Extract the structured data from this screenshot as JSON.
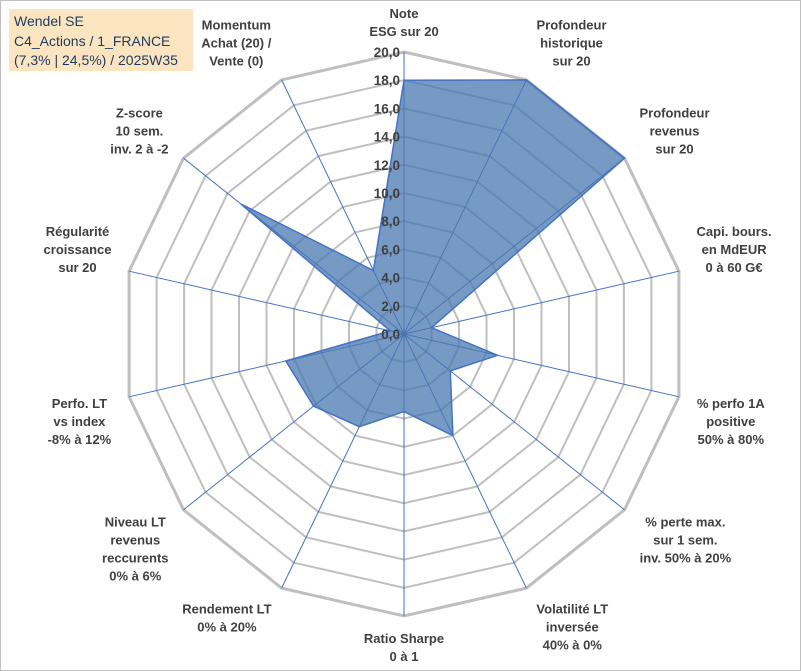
{
  "header": {
    "line1": "Wendel SE",
    "line2": "C4_Actions / 1_FRANCE",
    "line3": "(7,3% | 24,5%) / 2025W35"
  },
  "chart_data": {
    "type": "radar",
    "rmin": 0,
    "rmax": 20,
    "tick_step": 2,
    "tick_labels": [
      "0,0",
      "2,0",
      "4,0",
      "6,0",
      "8,0",
      "10,0",
      "12,0",
      "14,0",
      "16,0",
      "18,0",
      "20,0"
    ],
    "axes": [
      {
        "label": [
          "Note",
          "ESG sur 20"
        ]
      },
      {
        "label": [
          "Profondeur",
          "historique",
          "sur 20"
        ]
      },
      {
        "label": [
          "Profondeur",
          "revenus",
          "sur 20"
        ]
      },
      {
        "label": [
          "Capi. bours.",
          "en MdEUR",
          "0 à 60 G€"
        ]
      },
      {
        "label": [
          "% perfo 1A",
          "positive",
          "50% à 80%"
        ]
      },
      {
        "label": [
          "% perte max.",
          "sur 1 sem.",
          "inv. 50% à 20%"
        ]
      },
      {
        "label": [
          "Volatilité LT",
          "inversée",
          "40% à 0%"
        ]
      },
      {
        "label": [
          "Ratio Sharpe",
          "0 à 1"
        ]
      },
      {
        "label": [
          "Rendement LT",
          "0% à 20%"
        ]
      },
      {
        "label": [
          "Niveau LT",
          "revenus",
          "reccurents",
          "0% à 6%"
        ]
      },
      {
        "label": [
          "Perfo. LT",
          "vs index",
          "-8% à 12%"
        ]
      },
      {
        "label": [
          "Régularité",
          "croissance",
          "sur 20"
        ]
      },
      {
        "label": [
          "Z-score",
          "10 sem.",
          "inv. 2 à -2"
        ]
      },
      {
        "label": [
          "Momentum",
          "Achat (20) /",
          "Vente (0)"
        ]
      }
    ],
    "series": [
      {
        "values": [
          18.0,
          20.0,
          20.0,
          2.0,
          6.8,
          4.2,
          8.0,
          5.5,
          7.3,
          8.2,
          8.6,
          1.0,
          14.8,
          5.0
        ],
        "fill": "#4a78b0",
        "fill_opacity": 0.75,
        "stroke": "#4472c4"
      }
    ],
    "grid": true,
    "grid_color": "#bfbfbf",
    "spoke_color": "#4472c4"
  }
}
